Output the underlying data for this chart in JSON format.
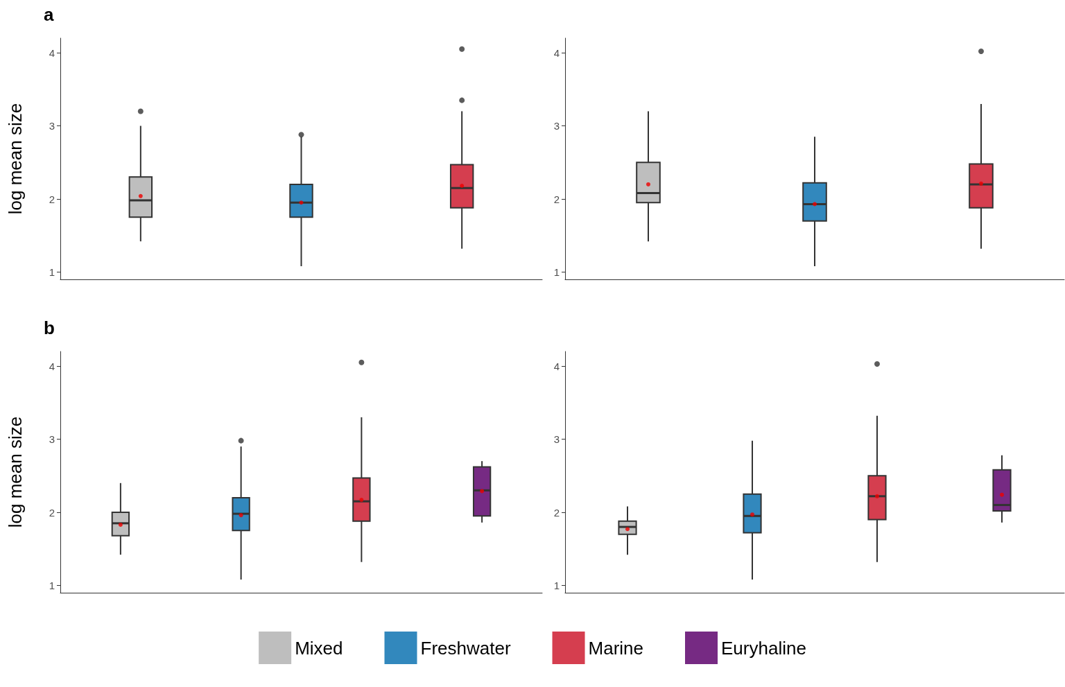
{
  "chart_data": [
    {
      "type": "box",
      "title": "a",
      "ylabel": "log mean size",
      "categories": [
        null,
        null,
        null
      ],
      "ylim": [
        0.9,
        4.2
      ],
      "yticks": [
        1,
        2,
        3,
        4
      ],
      "grid": false,
      "legend": false,
      "series": [
        {
          "color": "#bebebe",
          "boxes": [
            {
              "low": 1.42,
              "q1": 1.75,
              "median": 1.98,
              "q3": 2.3,
              "high": 3.0,
              "mean": 2.04,
              "outliers": [
                3.2
              ]
            },
            null,
            null
          ]
        },
        {
          "color": "#3288bd",
          "boxes": [
            null,
            {
              "low": 1.08,
              "q1": 1.75,
              "median": 1.95,
              "q3": 2.2,
              "high": 2.85,
              "mean": 1.95,
              "outliers": [
                2.88
              ]
            },
            null
          ]
        },
        {
          "color": "#d53e4f",
          "boxes": [
            null,
            null,
            {
              "low": 1.32,
              "q1": 1.88,
              "median": 2.15,
              "q3": 2.47,
              "high": 3.2,
              "mean": 2.18,
              "outliers": [
                3.35,
                4.05
              ]
            }
          ]
        }
      ]
    },
    {
      "type": "box",
      "categories": [
        null,
        null,
        null
      ],
      "ylim": [
        0.9,
        4.2
      ],
      "yticks": [
        1,
        2,
        3,
        4
      ],
      "grid": false,
      "legend": false,
      "series": [
        {
          "color": "#bebebe",
          "boxes": [
            {
              "low": 1.42,
              "q1": 1.95,
              "median": 2.08,
              "q3": 2.5,
              "high": 3.2,
              "mean": 2.2
            },
            null,
            null
          ]
        },
        {
          "color": "#3288bd",
          "boxes": [
            null,
            {
              "low": 1.08,
              "q1": 1.7,
              "median": 1.93,
              "q3": 2.22,
              "high": 2.85,
              "mean": 1.93
            },
            null
          ]
        },
        {
          "color": "#d53e4f",
          "boxes": [
            null,
            null,
            {
              "low": 1.32,
              "q1": 1.88,
              "median": 2.2,
              "q3": 2.48,
              "high": 3.3,
              "mean": 2.21,
              "outliers": [
                4.02
              ]
            }
          ]
        }
      ]
    },
    {
      "type": "box",
      "title": "b",
      "ylabel": "log mean size",
      "categories": [
        null,
        null,
        null,
        null
      ],
      "ylim": [
        0.9,
        4.2
      ],
      "yticks": [
        1,
        2,
        3,
        4
      ],
      "grid": false,
      "legend": "bottom",
      "series": [
        {
          "name": "Mixed",
          "color": "#bebebe",
          "boxes": [
            {
              "low": 1.42,
              "q1": 1.68,
              "median": 1.85,
              "q3": 2.0,
              "high": 2.4,
              "mean": 1.83
            },
            null,
            null,
            null
          ]
        },
        {
          "name": "Freshwater",
          "color": "#3288bd",
          "boxes": [
            null,
            {
              "low": 1.08,
              "q1": 1.75,
              "median": 1.98,
              "q3": 2.2,
              "high": 2.9,
              "mean": 1.96,
              "outliers": [
                2.98
              ]
            },
            null,
            null
          ]
        },
        {
          "name": "Marine",
          "color": "#d53e4f",
          "boxes": [
            null,
            null,
            {
              "low": 1.32,
              "q1": 1.88,
              "median": 2.15,
              "q3": 2.47,
              "high": 3.3,
              "mean": 2.17,
              "outliers": [
                4.05
              ]
            },
            null
          ]
        },
        {
          "name": "Euryhaline",
          "color": "#762a83",
          "boxes": [
            null,
            null,
            null,
            {
              "low": 1.86,
              "q1": 1.95,
              "median": 2.3,
              "q3": 2.62,
              "high": 2.7,
              "mean": 2.29
            }
          ]
        }
      ]
    },
    {
      "type": "box",
      "categories": [
        null,
        null,
        null,
        null
      ],
      "ylim": [
        0.9,
        4.2
      ],
      "yticks": [
        1,
        2,
        3,
        4
      ],
      "grid": false,
      "legend": false,
      "series": [
        {
          "color": "#bebebe",
          "boxes": [
            {
              "low": 1.42,
              "q1": 1.7,
              "median": 1.8,
              "q3": 1.88,
              "high": 2.08,
              "mean": 1.77
            },
            null,
            null,
            null
          ]
        },
        {
          "color": "#3288bd",
          "boxes": [
            null,
            {
              "low": 1.08,
              "q1": 1.72,
              "median": 1.95,
              "q3": 2.25,
              "high": 2.98,
              "mean": 1.97
            },
            null,
            null
          ]
        },
        {
          "color": "#d53e4f",
          "boxes": [
            null,
            null,
            {
              "low": 1.32,
              "q1": 1.9,
              "median": 2.22,
              "q3": 2.5,
              "high": 3.32,
              "mean": 2.22,
              "outliers": [
                4.03
              ]
            },
            null
          ]
        },
        {
          "color": "#762a83",
          "boxes": [
            null,
            null,
            null,
            {
              "low": 1.86,
              "q1": 2.02,
              "median": 2.1,
              "q3": 2.58,
              "high": 2.78,
              "mean": 2.24
            }
          ]
        }
      ]
    }
  ]
}
